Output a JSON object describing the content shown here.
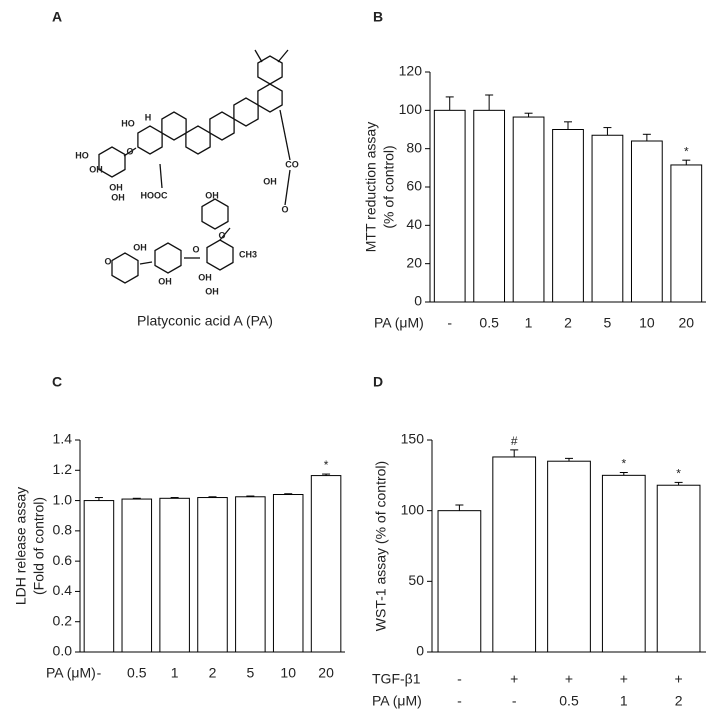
{
  "panel_a": {
    "label": "A",
    "caption": "Platyconic acid A (PA)",
    "structure_labels": [
      "H",
      "CO",
      "OH",
      "HO",
      "O",
      "HOOC",
      "OH",
      "HO",
      "OH",
      "OH",
      "OH",
      "O",
      "O",
      "O",
      "CH3",
      "OH",
      "OH",
      "OH",
      "OH",
      "O"
    ]
  },
  "chart_data": [
    {
      "type": "bar",
      "panel_label": "B",
      "ylabel": [
        "MTT reduction assay",
        "(% of control)"
      ],
      "xlabel": "PA (μM)",
      "categories": [
        "-",
        "0.5",
        "1",
        "2",
        "5",
        "10",
        "20"
      ],
      "values": [
        100,
        100,
        96.5,
        90,
        87,
        84,
        71.5
      ],
      "errors": [
        7,
        8,
        2,
        4,
        4,
        3.5,
        2.5
      ],
      "markers": [
        null,
        null,
        null,
        null,
        null,
        null,
        "*"
      ],
      "ylim": [
        0,
        120
      ],
      "yticks": [
        0,
        20,
        40,
        60,
        80,
        100,
        120
      ],
      "color": "#ffffff"
    },
    {
      "type": "bar",
      "panel_label": "C",
      "ylabel": [
        "LDH release assay",
        "(Fold of control)"
      ],
      "xlabel": "PA (μM)",
      "categories": [
        "-",
        "0.5",
        "1",
        "2",
        "5",
        "10",
        "20"
      ],
      "values": [
        1.0,
        1.01,
        1.015,
        1.02,
        1.025,
        1.04,
        1.165
      ],
      "errors": [
        0.02,
        0.005,
        0.005,
        0.005,
        0.005,
        0.005,
        0.01
      ],
      "markers": [
        null,
        null,
        null,
        null,
        null,
        null,
        "*"
      ],
      "ylim": [
        0,
        1.4
      ],
      "yticks": [
        {
          "value": 0,
          "label": "0.0"
        },
        0.2,
        0.4,
        0.6,
        0.8,
        {
          "value": 1,
          "label": "1.0"
        },
        1.2,
        1.4
      ],
      "color": "#ffffff"
    },
    {
      "type": "bar",
      "panel_label": "D",
      "ylabel": [
        "WST-1 assay (% of control)"
      ],
      "category_rows": [
        {
          "name": "TGF-β1",
          "labels": [
            "-",
            "+",
            "+",
            "+",
            "+"
          ]
        },
        {
          "name": "PA (μM)",
          "labels": [
            "-",
            "-",
            "0.5",
            "1",
            "2"
          ]
        }
      ],
      "values": [
        100,
        138,
        135,
        125,
        118
      ],
      "errors": [
        4,
        5,
        2,
        2,
        2
      ],
      "markers": [
        null,
        "#",
        null,
        "*",
        "*"
      ],
      "ylim": [
        0,
        150
      ],
      "yticks": [
        0,
        50,
        100,
        150
      ],
      "color": "#ffffff"
    }
  ]
}
